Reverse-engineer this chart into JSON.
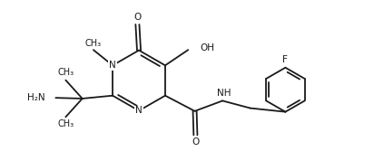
{
  "bg_color": "#ffffff",
  "line_color": "#1a1a1a",
  "line_width": 1.3,
  "font_size": 7.5,
  "fig_width": 4.12,
  "fig_height": 1.78,
  "dpi": 100,
  "xlim": [
    0,
    10
  ],
  "ylim": [
    0,
    4.3
  ]
}
